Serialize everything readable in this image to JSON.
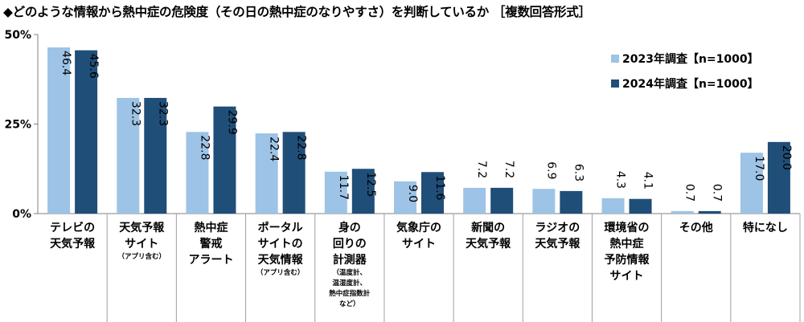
{
  "title": "◆どのような情報から熱中症の危険度（その日の熱中症のなりやすさ）を判断しているか ［複数回答形式］",
  "chart_data": {
    "type": "bar",
    "title": "◆どのような情報から熱中症の危険度（その日の熱中症のなりやすさ）を判断しているか ［複数回答形式］",
    "ylim": [
      0,
      50
    ],
    "yticks": [
      "0%",
      "25%",
      "50%"
    ],
    "grid": false,
    "legend_position": "top-right",
    "categories": [
      {
        "lines": [
          "テレビの",
          "天気予報"
        ],
        "sub": []
      },
      {
        "lines": [
          "天気予報",
          "サイト"
        ],
        "sub": [
          "（アプリ含む）"
        ]
      },
      {
        "lines": [
          "熱中症",
          "警戒",
          "アラート"
        ],
        "sub": []
      },
      {
        "lines": [
          "ポータル",
          "サイトの",
          "天気情報"
        ],
        "sub": [
          "（アプリ含む）"
        ]
      },
      {
        "lines": [
          "身の",
          "回りの",
          "計測器"
        ],
        "sub": [
          "（温度計、",
          "温湿度計、",
          "熱中症指数計",
          "など）"
        ]
      },
      {
        "lines": [
          "気象庁の",
          "サイト"
        ],
        "sub": []
      },
      {
        "lines": [
          "新聞の",
          "天気予報"
        ],
        "sub": []
      },
      {
        "lines": [
          "ラジオの",
          "天気予報"
        ],
        "sub": []
      },
      {
        "lines": [
          "環境省の",
          "熱中症",
          "予防情報",
          "サイト"
        ],
        "sub": []
      },
      {
        "lines": [
          "その他"
        ],
        "sub": []
      },
      {
        "lines": [
          "特になし"
        ],
        "sub": []
      }
    ],
    "series": [
      {
        "name": "2023年調査【n=1000】",
        "color": "#9dc3e6",
        "values": [
          46.4,
          32.3,
          22.8,
          22.4,
          11.7,
          9.0,
          7.2,
          6.9,
          4.3,
          0.7,
          17.0
        ]
      },
      {
        "name": "2024年調査【n=1000】",
        "color": "#1f4e79",
        "values": [
          45.6,
          32.3,
          29.9,
          22.8,
          12.5,
          11.6,
          7.2,
          6.3,
          4.1,
          0.7,
          20.0
        ]
      }
    ]
  }
}
